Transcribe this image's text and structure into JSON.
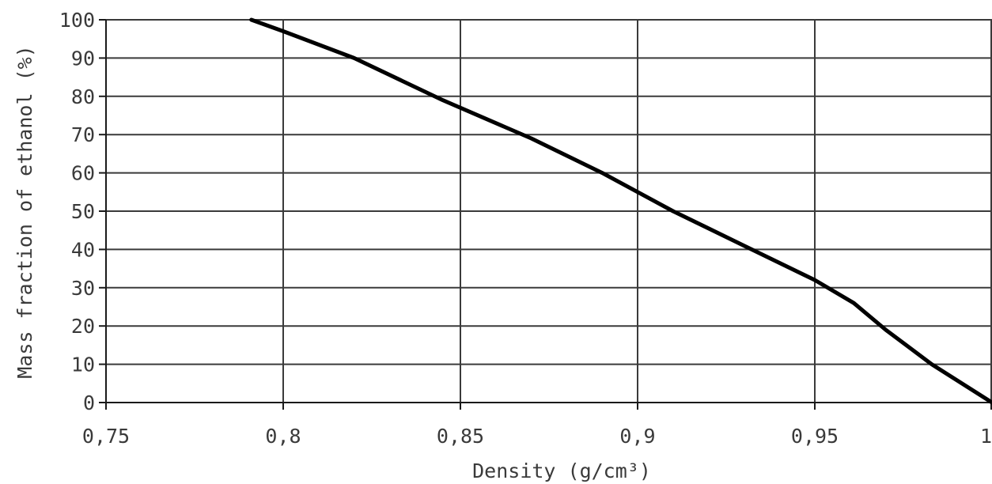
{
  "chart_data": {
    "type": "line",
    "xlabel": "Density (g/cm³)",
    "ylabel": "Mass fraction of ethanol (%)",
    "xlim": [
      0.75,
      1.0
    ],
    "ylim": [
      0,
      100
    ],
    "x_ticks": [
      0.75,
      0.8,
      0.85,
      0.9,
      0.95,
      1.0
    ],
    "x_tick_labels": [
      "0,75",
      "0,8",
      "0,85",
      "0,9",
      "0,95",
      "1"
    ],
    "y_ticks": [
      0,
      10,
      20,
      30,
      40,
      50,
      60,
      70,
      80,
      90,
      100
    ],
    "y_tick_labels": [
      "0",
      "10",
      "20",
      "30",
      "40",
      "50",
      "60",
      "70",
      "80",
      "90",
      "100"
    ],
    "grid": true,
    "series": [
      {
        "color": "#000000",
        "points": [
          {
            "x": 0.791,
            "y": 100
          },
          {
            "x": 0.8,
            "y": 97
          },
          {
            "x": 0.82,
            "y": 90
          },
          {
            "x": 0.845,
            "y": 79
          },
          {
            "x": 0.87,
            "y": 69
          },
          {
            "x": 0.89,
            "y": 60
          },
          {
            "x": 0.91,
            "y": 50
          },
          {
            "x": 0.93,
            "y": 41
          },
          {
            "x": 0.95,
            "y": 32
          },
          {
            "x": 0.961,
            "y": 26
          },
          {
            "x": 0.97,
            "y": 19
          },
          {
            "x": 0.983,
            "y": 10
          },
          {
            "x": 1.0,
            "y": 0
          }
        ]
      }
    ]
  }
}
